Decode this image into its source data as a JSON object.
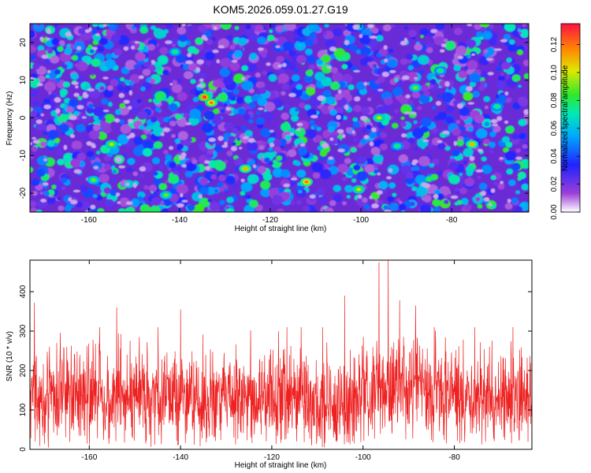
{
  "title": "KOM5.2026.059.01.27.G19",
  "chart_data": [
    {
      "type": "heatmap",
      "xlabel": "Height of straight line (km)",
      "ylabel": "Frequency (Hz)",
      "xlim": [
        -173,
        -63
      ],
      "ylim": [
        -25,
        25
      ],
      "xticks": [
        -160,
        -140,
        -120,
        -100,
        -80
      ],
      "yticks": [
        -20,
        -10,
        0,
        10,
        20
      ],
      "colorbar": {
        "label": "Normalized spectral amplitude",
        "range": [
          0,
          0.135
        ],
        "ticks": [
          0.0,
          0.02,
          0.04,
          0.06,
          0.08,
          0.1,
          0.12
        ],
        "tick_labels": [
          "0.00",
          "0.02",
          "0.04",
          "0.06",
          "0.08",
          "0.10",
          "0.12"
        ]
      },
      "hotspots": [
        {
          "x": -134.5,
          "y": 5.5,
          "value": 0.13
        },
        {
          "x": -133.0,
          "y": 4.0,
          "value": 0.12
        },
        {
          "x": -125.5,
          "y": -13.5,
          "value": 0.11
        },
        {
          "x": -112.0,
          "y": -17.0,
          "value": 0.12
        },
        {
          "x": -100.5,
          "y": -19.0,
          "value": 0.1
        },
        {
          "x": -96.0,
          "y": 0.0,
          "value": 0.1
        },
        {
          "x": -75.5,
          "y": -7.0,
          "value": 0.11
        },
        {
          "x": -155.0,
          "y": -7.0,
          "value": 0.1
        },
        {
          "x": -159.0,
          "y": -16.5,
          "value": 0.09
        },
        {
          "x": -141.0,
          "y": 17.5,
          "value": 0.08
        },
        {
          "x": -88.0,
          "y": 8.0,
          "value": 0.09
        },
        {
          "x": -82.5,
          "y": 12.5,
          "value": 0.08
        },
        {
          "x": -143.0,
          "y": -20.5,
          "value": 0.09
        },
        {
          "x": -92.0,
          "y": -7.5,
          "value": 0.08
        },
        {
          "x": -70.0,
          "y": 3.0,
          "value": 0.08
        }
      ]
    },
    {
      "type": "line",
      "xlabel": "Height of straight line (km)",
      "ylabel": "SNR (10 * v/v)",
      "xlim": [
        -173,
        -63
      ],
      "ylim": [
        0,
        480
      ],
      "xticks": [
        -160,
        -140,
        -120,
        -100,
        -80
      ],
      "yticks": [
        0,
        100,
        200,
        300,
        400
      ],
      "series": [
        {
          "name": "SNR",
          "color": "#ee2020"
        }
      ],
      "baseline_mean": 130,
      "peaks": [
        {
          "x": -172.0,
          "y": 372
        },
        {
          "x": -154.0,
          "y": 360
        },
        {
          "x": -140.0,
          "y": 355
        },
        {
          "x": -104.0,
          "y": 390
        },
        {
          "x": -96.5,
          "y": 475
        },
        {
          "x": -94.5,
          "y": 480
        },
        {
          "x": -92.0,
          "y": 378
        },
        {
          "x": -88.5,
          "y": 365
        }
      ]
    }
  ]
}
